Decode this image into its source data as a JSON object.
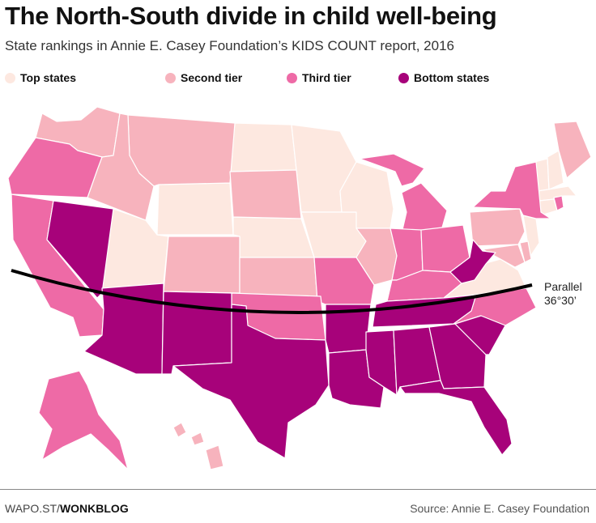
{
  "title": "The North-South divide in child well-being",
  "subtitle": "State rankings in Annie E. Casey Foundation’s KIDS COUNT report, 2016",
  "legend": [
    {
      "label": "Top states",
      "color": "#fde8e0"
    },
    {
      "label": "Second tier",
      "color": "#f7b3bd"
    },
    {
      "label": "Third tier",
      "color": "#ee6aa6"
    },
    {
      "label": "Bottom states",
      "color": "#a7027a"
    }
  ],
  "tiers": {
    "top": [
      "Wyoming",
      "Utah",
      "North Dakota",
      "Minnesota",
      "Iowa",
      "Nebraska",
      "Wisconsin",
      "Vermont",
      "New Hampshire",
      "Massachusetts",
      "Connecticut",
      "New Jersey",
      "Virginia"
    ],
    "second": [
      "Washington",
      "Montana",
      "Idaho",
      "Colorado",
      "South Dakota",
      "Kansas",
      "Illinois",
      "Pennsylvania",
      "Maine",
      "Maryland",
      "Delaware",
      "Hawaii"
    ],
    "third": [
      "Oregon",
      "California",
      "Missouri",
      "Oklahoma",
      "Michigan",
      "Indiana",
      "Ohio",
      "Kentucky",
      "New York",
      "North Carolina",
      "Rhode Island",
      "Alaska"
    ],
    "bottom": [
      "Nevada",
      "Arizona",
      "New Mexico",
      "Texas",
      "Arkansas",
      "Louisiana",
      "Mississippi",
      "Alabama",
      "Tennessee",
      "Georgia",
      "South Carolina",
      "Florida",
      "West Virginia"
    ]
  },
  "parallel_label": [
    "Parallel",
    "36°30’"
  ],
  "footer": {
    "left_prefix": "WAPO.ST/",
    "left_bold": "WONKBLOG",
    "right": "Source: Annie E. Casey Foundation"
  }
}
